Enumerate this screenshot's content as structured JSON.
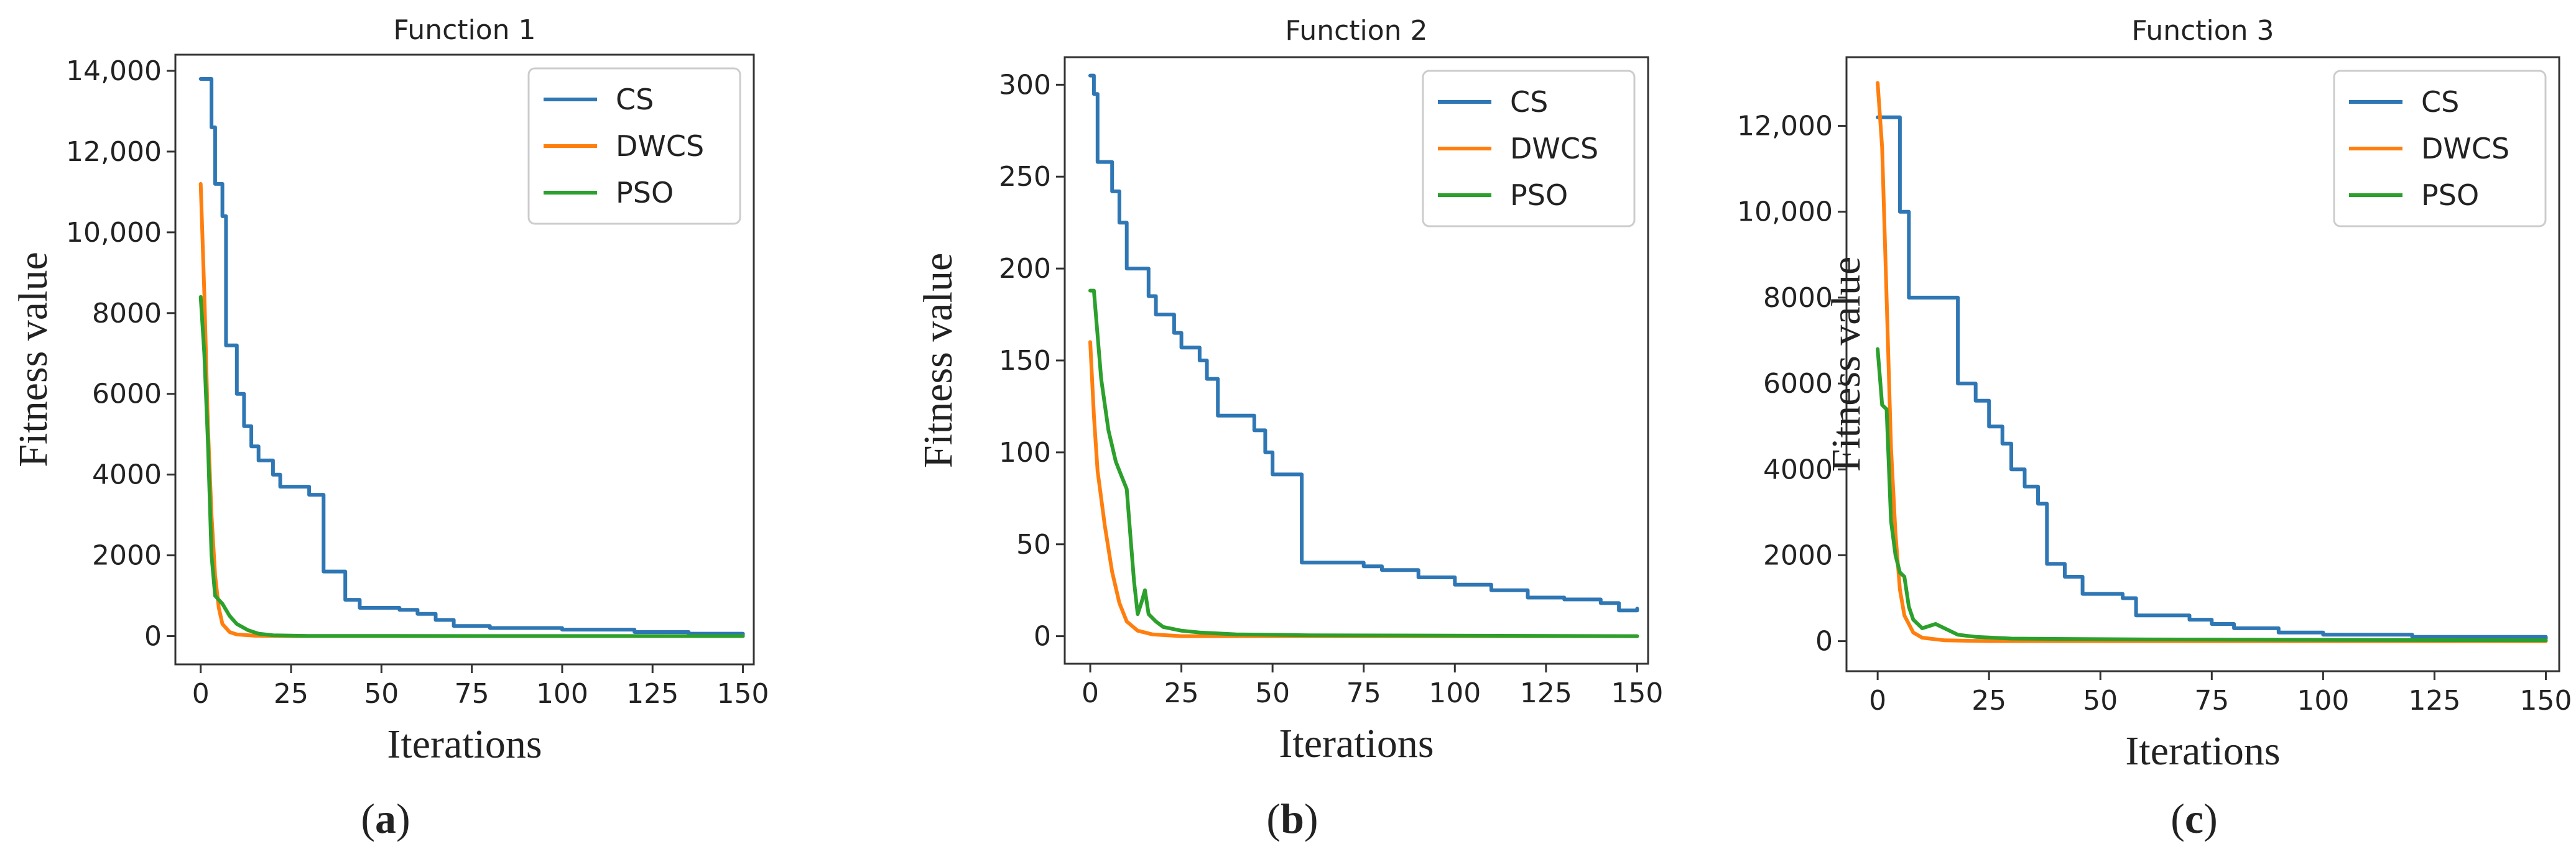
{
  "figure": {
    "colors": {
      "CS": "#2f77b4",
      "DWCS": "#ff7f0e",
      "PSO": "#2ca02c"
    },
    "legend": [
      "CS",
      "DWCS",
      "PSO"
    ]
  },
  "chart_data": [
    {
      "type": "line",
      "title": "Function 1",
      "xlabel": "Iterations",
      "ylabel": "Fitness value",
      "caption_letter": "a",
      "xlim": [
        -7,
        153
      ],
      "ylim": [
        -700,
        14400
      ],
      "xticks": [
        0,
        25,
        50,
        75,
        100,
        125,
        150
      ],
      "xtick_labels": [
        "0",
        "25",
        "50",
        "75",
        "100",
        "125",
        "150"
      ],
      "yticks": [
        0,
        2000,
        4000,
        6000,
        8000,
        10000,
        12000,
        14000
      ],
      "ytick_labels": [
        "0",
        "2000",
        "4000",
        "6000",
        "8000",
        "10,000",
        "12,000",
        "14,000"
      ],
      "legend_position": "top-right",
      "grid": false,
      "series": [
        {
          "name": "CS",
          "color": "#2f77b4",
          "step": true,
          "points": [
            [
              0,
              13800
            ],
            [
              2,
              13800
            ],
            [
              3,
              12600
            ],
            [
              4,
              11200
            ],
            [
              6,
              10400
            ],
            [
              7,
              7200
            ],
            [
              10,
              6000
            ],
            [
              12,
              5200
            ],
            [
              14,
              4700
            ],
            [
              16,
              4350
            ],
            [
              20,
              4000
            ],
            [
              22,
              3700
            ],
            [
              30,
              3500
            ],
            [
              34,
              1600
            ],
            [
              40,
              900
            ],
            [
              44,
              700
            ],
            [
              55,
              650
            ],
            [
              60,
              550
            ],
            [
              65,
              400
            ],
            [
              70,
              250
            ],
            [
              80,
              200
            ],
            [
              100,
              160
            ],
            [
              120,
              100
            ],
            [
              135,
              60
            ],
            [
              150,
              40
            ]
          ]
        },
        {
          "name": "DWCS",
          "color": "#ff7f0e",
          "step": false,
          "points": [
            [
              0,
              11200
            ],
            [
              1,
              8500
            ],
            [
              2,
              5200
            ],
            [
              3,
              3000
            ],
            [
              4,
              1500
            ],
            [
              5,
              700
            ],
            [
              6,
              300
            ],
            [
              8,
              100
            ],
            [
              10,
              40
            ],
            [
              15,
              10
            ],
            [
              25,
              0
            ],
            [
              150,
              0
            ]
          ]
        },
        {
          "name": "PSO",
          "color": "#2ca02c",
          "step": false,
          "points": [
            [
              0,
              8400
            ],
            [
              1,
              7000
            ],
            [
              2,
              4800
            ],
            [
              3,
              2000
            ],
            [
              4,
              1000
            ],
            [
              6,
              800
            ],
            [
              8,
              500
            ],
            [
              10,
              300
            ],
            [
              13,
              150
            ],
            [
              16,
              60
            ],
            [
              20,
              20
            ],
            [
              30,
              5
            ],
            [
              150,
              0
            ]
          ]
        }
      ]
    },
    {
      "type": "line",
      "title": "Function 2",
      "xlabel": "Iterations",
      "ylabel": "Fitness value",
      "caption_letter": "b",
      "xlim": [
        -7,
        153
      ],
      "ylim": [
        -15,
        315
      ],
      "xticks": [
        0,
        25,
        50,
        75,
        100,
        125,
        150
      ],
      "xtick_labels": [
        "0",
        "25",
        "50",
        "75",
        "100",
        "125",
        "150"
      ],
      "yticks": [
        0,
        50,
        100,
        150,
        200,
        250,
        300
      ],
      "ytick_labels": [
        "0",
        "50",
        "100",
        "150",
        "200",
        "250",
        "300"
      ],
      "legend_position": "top-right",
      "grid": false,
      "series": [
        {
          "name": "CS",
          "color": "#2f77b4",
          "step": true,
          "points": [
            [
              0,
              305
            ],
            [
              1,
              295
            ],
            [
              2,
              258
            ],
            [
              5,
              258
            ],
            [
              6,
              242
            ],
            [
              8,
              225
            ],
            [
              10,
              200
            ],
            [
              15,
              200
            ],
            [
              16,
              185
            ],
            [
              18,
              175
            ],
            [
              23,
              165
            ],
            [
              25,
              157
            ],
            [
              30,
              150
            ],
            [
              32,
              140
            ],
            [
              35,
              120
            ],
            [
              42,
              120
            ],
            [
              45,
              112
            ],
            [
              48,
              100
            ],
            [
              50,
              88
            ],
            [
              57,
              88
            ],
            [
              58,
              40
            ],
            [
              75,
              38
            ],
            [
              80,
              36
            ],
            [
              90,
              32
            ],
            [
              100,
              28
            ],
            [
              110,
              25
            ],
            [
              120,
              21
            ],
            [
              130,
              20
            ],
            [
              140,
              18
            ],
            [
              145,
              14
            ],
            [
              150,
              15
            ]
          ]
        },
        {
          "name": "DWCS",
          "color": "#ff7f0e",
          "step": false,
          "points": [
            [
              0,
              160
            ],
            [
              1,
              120
            ],
            [
              2,
              90
            ],
            [
              4,
              60
            ],
            [
              6,
              35
            ],
            [
              8,
              18
            ],
            [
              10,
              8
            ],
            [
              13,
              3
            ],
            [
              17,
              1
            ],
            [
              25,
              0
            ],
            [
              150,
              0
            ]
          ]
        },
        {
          "name": "PSO",
          "color": "#2ca02c",
          "step": false,
          "points": [
            [
              0,
              188
            ],
            [
              1,
              188
            ],
            [
              3,
              140
            ],
            [
              5,
              112
            ],
            [
              7,
              95
            ],
            [
              8,
              90
            ],
            [
              10,
              80
            ],
            [
              11,
              55
            ],
            [
              12,
              30
            ],
            [
              13,
              12
            ],
            [
              14,
              18
            ],
            [
              15,
              25
            ],
            [
              16,
              12
            ],
            [
              18,
              8
            ],
            [
              20,
              5
            ],
            [
              25,
              3
            ],
            [
              30,
              2
            ],
            [
              40,
              1
            ],
            [
              60,
              0.5
            ],
            [
              150,
              0
            ]
          ]
        }
      ]
    },
    {
      "type": "line",
      "title": "Function 3",
      "xlabel": "Iterations",
      "ylabel": "Fitness value",
      "caption_letter": "c",
      "xlim": [
        -7,
        153
      ],
      "ylim": [
        -700,
        13600
      ],
      "xticks": [
        0,
        25,
        50,
        75,
        100,
        125,
        150
      ],
      "xtick_labels": [
        "0",
        "25",
        "50",
        "75",
        "100",
        "125",
        "150"
      ],
      "yticks": [
        0,
        2000,
        4000,
        6000,
        8000,
        10000,
        12000
      ],
      "ytick_labels": [
        "0",
        "2000",
        "4000",
        "6000",
        "8000",
        "10,000",
        "12,000"
      ],
      "legend_position": "top-right",
      "grid": false,
      "series": [
        {
          "name": "CS",
          "color": "#2f77b4",
          "step": true,
          "points": [
            [
              0,
              12200
            ],
            [
              3,
              12200
            ],
            [
              5,
              10000
            ],
            [
              7,
              8000
            ],
            [
              17,
              8000
            ],
            [
              18,
              6000
            ],
            [
              22,
              5600
            ],
            [
              25,
              5000
            ],
            [
              28,
              4600
            ],
            [
              30,
              4000
            ],
            [
              33,
              3600
            ],
            [
              36,
              3200
            ],
            [
              38,
              1800
            ],
            [
              42,
              1500
            ],
            [
              46,
              1100
            ],
            [
              55,
              1000
            ],
            [
              58,
              600
            ],
            [
              70,
              500
            ],
            [
              75,
              400
            ],
            [
              80,
              300
            ],
            [
              90,
              200
            ],
            [
              100,
              150
            ],
            [
              120,
              100
            ],
            [
              150,
              60
            ]
          ]
        },
        {
          "name": "DWCS",
          "color": "#ff7f0e",
          "step": false,
          "points": [
            [
              0,
              13000
            ],
            [
              1,
              11500
            ],
            [
              2,
              8000
            ],
            [
              3,
              4500
            ],
            [
              4,
              2500
            ],
            [
              5,
              1200
            ],
            [
              6,
              600
            ],
            [
              8,
              200
            ],
            [
              10,
              80
            ],
            [
              15,
              20
            ],
            [
              25,
              0
            ],
            [
              150,
              0
            ]
          ]
        },
        {
          "name": "PSO",
          "color": "#2ca02c",
          "step": false,
          "points": [
            [
              0,
              6800
            ],
            [
              1,
              5500
            ],
            [
              2,
              5400
            ],
            [
              3,
              2800
            ],
            [
              4,
              2000
            ],
            [
              5,
              1600
            ],
            [
              6,
              1500
            ],
            [
              7,
              800
            ],
            [
              8,
              500
            ],
            [
              10,
              300
            ],
            [
              13,
              400
            ],
            [
              15,
              300
            ],
            [
              18,
              150
            ],
            [
              22,
              100
            ],
            [
              30,
              60
            ],
            [
              60,
              40
            ],
            [
              100,
              30
            ],
            [
              150,
              20
            ]
          ]
        }
      ]
    }
  ]
}
